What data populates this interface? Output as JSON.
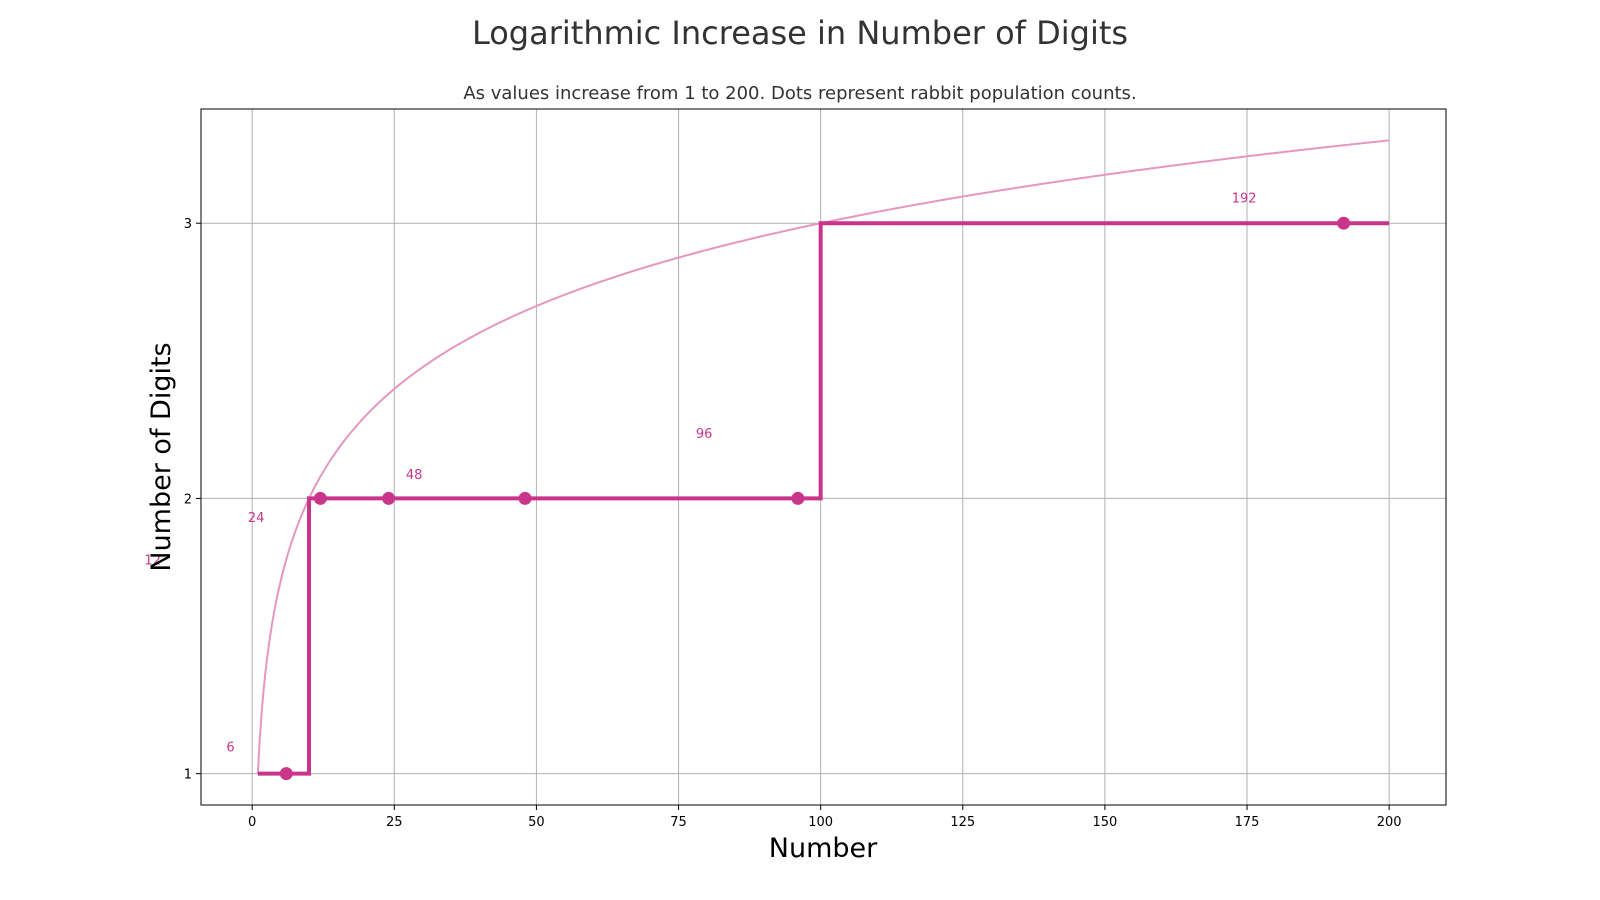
{
  "chart_data": {
    "type": "line",
    "title": "Logarithmic Increase in Number of Digits",
    "subtitle": "As values increase from 1 to 200.  Dots represent rabbit population counts.",
    "xlabel": "Number",
    "ylabel": "Number of Digits",
    "xlim": [
      -9,
      210
    ],
    "ylim": [
      0.886,
      3.415
    ],
    "x_ticks": [
      0,
      25,
      50,
      75,
      100,
      125,
      150,
      175,
      200
    ],
    "y_ticks": [
      1,
      2,
      3
    ],
    "grid": true,
    "series": [
      {
        "kind": "step",
        "color": "#c9358a",
        "points": [
          [
            1,
            1
          ],
          [
            10,
            1
          ],
          [
            10,
            2
          ],
          [
            100,
            2
          ],
          [
            100,
            3
          ],
          [
            200,
            3
          ]
        ]
      },
      {
        "kind": "curve",
        "color": "#e597bf",
        "function": "log10(x) + 1",
        "x_range": [
          1,
          200
        ]
      }
    ],
    "points": {
      "color": "#c9358a",
      "x": [
        6,
        12,
        24,
        48,
        96,
        192
      ],
      "y": [
        1,
        2,
        2,
        2,
        2,
        3
      ]
    },
    "point_labels": [
      {
        "text": "6",
        "x": -3.8,
        "y": 1.08
      },
      {
        "text": "12",
        "x": -17.5,
        "y": 1.76
      },
      {
        "text": "24",
        "x": 0.7,
        "y": 1.915
      },
      {
        "text": "48",
        "x": 28.5,
        "y": 2.07
      },
      {
        "text": "96",
        "x": 79.5,
        "y": 2.22
      },
      {
        "text": "192",
        "x": 174.5,
        "y": 3.075
      }
    ]
  }
}
